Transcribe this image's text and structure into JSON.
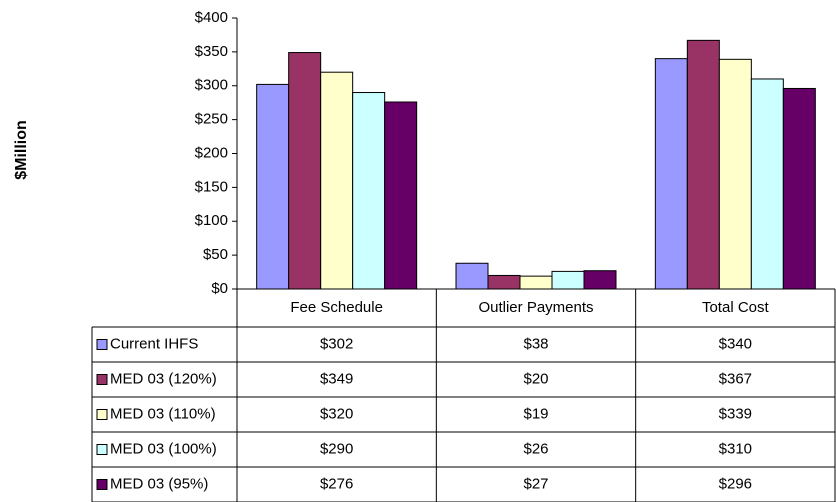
{
  "chart_data": {
    "type": "bar",
    "y_label": "$Million",
    "categories": [
      "Fee Schedule",
      "Outlier Payments",
      "Total Cost"
    ],
    "ylim": [
      0,
      400
    ],
    "yticks": [
      {
        "value": 0,
        "label": "$0"
      },
      {
        "value": 50,
        "label": "$50"
      },
      {
        "value": 100,
        "label": "$100"
      },
      {
        "value": 150,
        "label": "$150"
      },
      {
        "value": 200,
        "label": "$200"
      },
      {
        "value": 250,
        "label": "$250"
      },
      {
        "value": 300,
        "label": "$300"
      },
      {
        "value": 350,
        "label": "$350"
      },
      {
        "value": 400,
        "label": "$400"
      }
    ],
    "series": [
      {
        "name": "Current IHFS",
        "color": "#9999ff",
        "values": [
          302,
          38,
          340
        ],
        "value_labels": [
          "$302",
          "$38",
          "$340"
        ]
      },
      {
        "name": "MED 03 (120%)",
        "color": "#993366",
        "values": [
          349,
          20,
          367
        ],
        "value_labels": [
          "$349",
          "$20",
          "$367"
        ]
      },
      {
        "name": "MED 03 (110%)",
        "color": "#ffffcc",
        "values": [
          320,
          19,
          339
        ],
        "value_labels": [
          "$320",
          "$19",
          "$339"
        ]
      },
      {
        "name": "MED 03 (100%)",
        "color": "#ccffff",
        "values": [
          290,
          26,
          310
        ],
        "value_labels": [
          "$290",
          "$26",
          "$310"
        ]
      },
      {
        "name": "MED 03 (95%)",
        "color": "#660066",
        "values": [
          276,
          27,
          296
        ],
        "value_labels": [
          "$276",
          "$27",
          "$296"
        ]
      }
    ]
  }
}
